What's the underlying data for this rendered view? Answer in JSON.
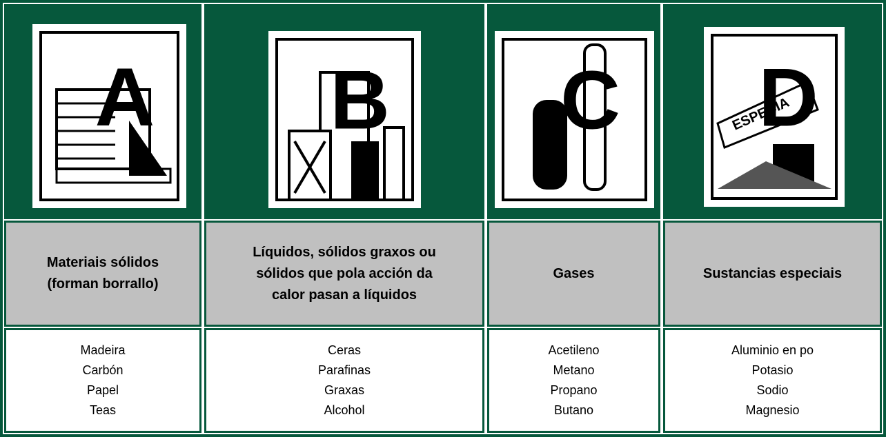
{
  "columns": [
    {
      "sign": "A",
      "header": [
        "Materiais sólidos",
        "(forman borrallo)"
      ],
      "items": [
        "Madeira",
        "Carbón",
        "Papel",
        "Teas"
      ]
    },
    {
      "sign": "B",
      "header": [
        "Líquidos, sólidos graxos ou",
        "sólidos que pola acción da",
        "calor pasan a líquidos"
      ],
      "items": [
        "Ceras",
        "Parafinas",
        "Graxas",
        "Alcohol"
      ]
    },
    {
      "sign": "C",
      "header": [
        "Gases"
      ],
      "items": [
        "Acetileno",
        "Metano",
        "Propano",
        "Butano"
      ]
    },
    {
      "sign": "D",
      "tag": "ESPECIA",
      "header": [
        "Sustancias especiais"
      ],
      "items": [
        "Aluminio en po",
        "Potasio",
        "Sodio",
        "Magnesio"
      ]
    }
  ]
}
